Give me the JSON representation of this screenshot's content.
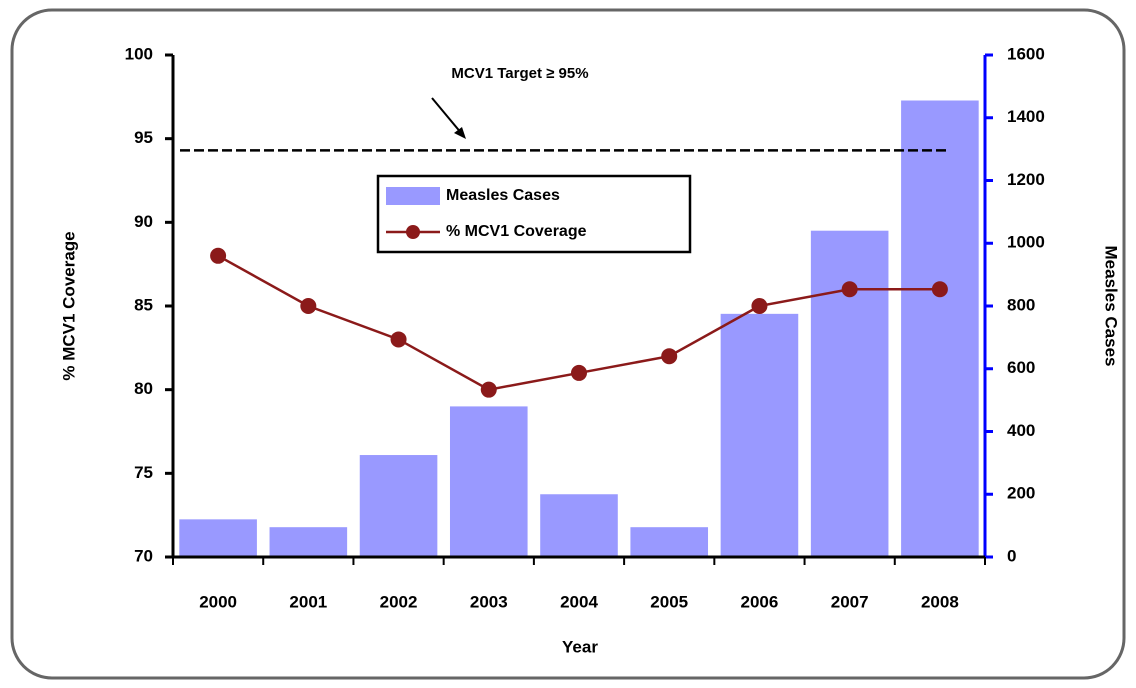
{
  "chart_data": {
    "type": "bar-line",
    "categories": [
      "2000",
      "2001",
      "2002",
      "2003",
      "2004",
      "2005",
      "2006",
      "2007",
      "2008"
    ],
    "series": [
      {
        "name": "Measles Cases",
        "type": "bar",
        "axis": "y2",
        "color": "#9999ff",
        "values": [
          120,
          95,
          325,
          480,
          200,
          95,
          775,
          1040,
          1455
        ]
      },
      {
        "name": "% MCV1 Coverage",
        "type": "line",
        "axis": "y",
        "color": "#8b1a1a",
        "values": [
          88,
          85,
          83,
          80,
          81,
          82,
          85,
          86,
          86
        ]
      }
    ],
    "xlabel": "Year",
    "ylabel": "% MCV1 Coverage",
    "y2label": "Measles Cases",
    "ylim": [
      70,
      100
    ],
    "yticks": [
      70,
      75,
      80,
      85,
      90,
      95,
      100
    ],
    "y2lim": [
      0,
      1600
    ],
    "y2ticks": [
      0,
      200,
      400,
      600,
      800,
      1000,
      1200,
      1400,
      1600
    ],
    "target": {
      "value": 94.3,
      "label": "MCV1 Target ≥ 95%"
    },
    "legend": "upper center"
  }
}
